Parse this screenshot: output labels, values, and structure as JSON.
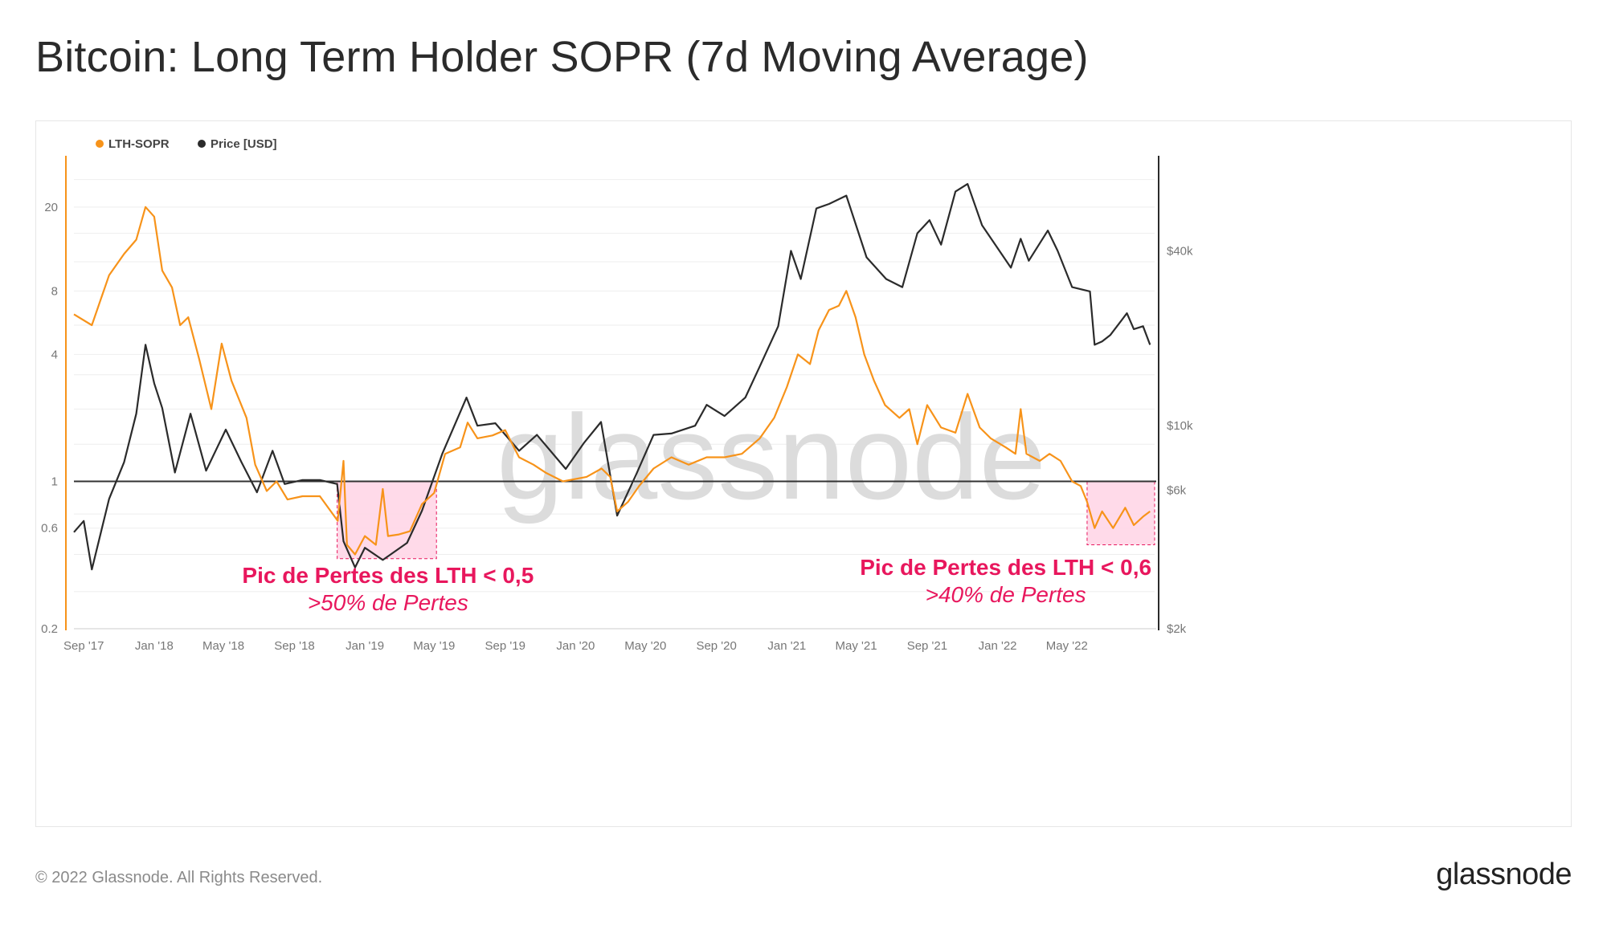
{
  "title": "Bitcoin: Long Term Holder SOPR (7d Moving Average)",
  "footer": {
    "copyright": "© 2022 Glassnode. All Rights Reserved.",
    "logo": "glassnode"
  },
  "colors": {
    "lth_sopr": "#f7931a",
    "price": "#2b2b2b",
    "highlight_fill": "#ffd6e7",
    "highlight_border": "#e8175d",
    "annotation": "#e8175d",
    "watermark": "#dcdcdc",
    "grid": "#eeeeee"
  },
  "chart_data": {
    "type": "line",
    "watermark": "glassnode",
    "legend": [
      "LTH-SOPR",
      "Price [USD]"
    ],
    "legend_position": "top-left",
    "grid": true,
    "x_range": [
      "2017-08-15",
      "2022-09-30"
    ],
    "x_ticks": [
      {
        "date": "2017-09-01",
        "label": "Sep '17"
      },
      {
        "date": "2018-01-01",
        "label": "Jan '18"
      },
      {
        "date": "2018-05-01",
        "label": "May '18"
      },
      {
        "date": "2018-09-01",
        "label": "Sep '18"
      },
      {
        "date": "2019-01-01",
        "label": "Jan '19"
      },
      {
        "date": "2019-05-01",
        "label": "May '19"
      },
      {
        "date": "2019-09-01",
        "label": "Sep '19"
      },
      {
        "date": "2020-01-01",
        "label": "Jan '20"
      },
      {
        "date": "2020-05-01",
        "label": "May '20"
      },
      {
        "date": "2020-09-01",
        "label": "Sep '20"
      },
      {
        "date": "2021-01-01",
        "label": "Jan '21"
      },
      {
        "date": "2021-05-01",
        "label": "May '21"
      },
      {
        "date": "2021-09-01",
        "label": "Sep '21"
      },
      {
        "date": "2022-01-01",
        "label": "Jan '22"
      },
      {
        "date": "2022-05-01",
        "label": "May '22"
      }
    ],
    "y_left": {
      "scale": "log",
      "range": [
        0.2,
        35
      ],
      "ticks": [
        {
          "value": 0.2,
          "label": "0.2"
        },
        {
          "value": 0.6,
          "label": "0.6"
        },
        {
          "value": 1,
          "label": "1"
        },
        {
          "value": 4,
          "label": "4"
        },
        {
          "value": 8,
          "label": "8"
        },
        {
          "value": 20,
          "label": "20"
        }
      ]
    },
    "y_right": {
      "scale": "log",
      "range": [
        2000,
        85000
      ],
      "ticks": [
        {
          "value": 2000,
          "label": "$2k"
        },
        {
          "value": 6000,
          "label": "$6k"
        },
        {
          "value": 10000,
          "label": "$10k"
        },
        {
          "value": 40000,
          "label": "$40k"
        }
      ]
    },
    "reference_line": {
      "value": 1,
      "axis": "left"
    },
    "series": [
      {
        "name": "LTH-SOPR",
        "axis": "left",
        "points": [
          [
            "2017-08-15",
            6.2
          ],
          [
            "2017-09-15",
            5.5
          ],
          [
            "2017-10-15",
            9.5
          ],
          [
            "2017-11-10",
            12
          ],
          [
            "2017-12-01",
            14
          ],
          [
            "2017-12-17",
            20
          ],
          [
            "2018-01-01",
            18
          ],
          [
            "2018-01-15",
            10
          ],
          [
            "2018-02-01",
            8.3
          ],
          [
            "2018-02-15",
            5.5
          ],
          [
            "2018-03-01",
            6
          ],
          [
            "2018-03-20",
            3.8
          ],
          [
            "2018-04-10",
            2.2
          ],
          [
            "2018-04-28",
            4.5
          ],
          [
            "2018-05-15",
            3
          ],
          [
            "2018-06-10",
            2.0
          ],
          [
            "2018-06-25",
            1.2
          ],
          [
            "2018-07-15",
            0.9
          ],
          [
            "2018-08-01",
            1.0
          ],
          [
            "2018-08-20",
            0.82
          ],
          [
            "2018-09-15",
            0.85
          ],
          [
            "2018-10-15",
            0.85
          ],
          [
            "2018-11-15",
            0.65
          ],
          [
            "2018-11-25",
            1.25
          ],
          [
            "2018-12-01",
            0.5
          ],
          [
            "2018-12-15",
            0.45
          ],
          [
            "2019-01-01",
            0.55
          ],
          [
            "2019-01-20",
            0.5
          ],
          [
            "2019-02-01",
            0.92
          ],
          [
            "2019-02-10",
            0.55
          ],
          [
            "2019-03-01",
            0.56
          ],
          [
            "2019-03-20",
            0.58
          ],
          [
            "2019-04-10",
            0.78
          ],
          [
            "2019-05-01",
            0.88
          ],
          [
            "2019-05-20",
            1.35
          ],
          [
            "2019-06-15",
            1.45
          ],
          [
            "2019-06-28",
            1.9
          ],
          [
            "2019-07-15",
            1.6
          ],
          [
            "2019-08-10",
            1.65
          ],
          [
            "2019-09-01",
            1.75
          ],
          [
            "2019-09-25",
            1.3
          ],
          [
            "2019-10-20",
            1.2
          ],
          [
            "2019-11-10",
            1.1
          ],
          [
            "2019-12-10",
            1.0
          ],
          [
            "2020-01-20",
            1.05
          ],
          [
            "2020-02-15",
            1.15
          ],
          [
            "2020-03-01",
            1.05
          ],
          [
            "2020-03-13",
            0.72
          ],
          [
            "2020-04-01",
            0.8
          ],
          [
            "2020-04-20",
            0.95
          ],
          [
            "2020-05-15",
            1.15
          ],
          [
            "2020-06-15",
            1.3
          ],
          [
            "2020-07-15",
            1.2
          ],
          [
            "2020-08-15",
            1.3
          ],
          [
            "2020-09-15",
            1.3
          ],
          [
            "2020-10-15",
            1.35
          ],
          [
            "2020-11-15",
            1.6
          ],
          [
            "2020-12-10",
            2.0
          ],
          [
            "2021-01-01",
            2.8
          ],
          [
            "2021-01-20",
            4.0
          ],
          [
            "2021-02-10",
            3.6
          ],
          [
            "2021-02-25",
            5.2
          ],
          [
            "2021-03-15",
            6.5
          ],
          [
            "2021-04-01",
            6.8
          ],
          [
            "2021-04-14",
            8.0
          ],
          [
            "2021-04-30",
            6.0
          ],
          [
            "2021-05-15",
            4.0
          ],
          [
            "2021-06-01",
            3.0
          ],
          [
            "2021-06-20",
            2.3
          ],
          [
            "2021-07-15",
            2.0
          ],
          [
            "2021-08-01",
            2.2
          ],
          [
            "2021-08-15",
            1.5
          ],
          [
            "2021-09-01",
            2.3
          ],
          [
            "2021-09-25",
            1.8
          ],
          [
            "2021-10-20",
            1.7
          ],
          [
            "2021-11-10",
            2.6
          ],
          [
            "2021-12-01",
            1.8
          ],
          [
            "2021-12-20",
            1.6
          ],
          [
            "2022-01-15",
            1.45
          ],
          [
            "2022-02-01",
            1.35
          ],
          [
            "2022-02-10",
            2.2
          ],
          [
            "2022-02-20",
            1.35
          ],
          [
            "2022-03-15",
            1.25
          ],
          [
            "2022-04-01",
            1.35
          ],
          [
            "2022-04-20",
            1.25
          ],
          [
            "2022-05-10",
            1.0
          ],
          [
            "2022-05-25",
            0.95
          ],
          [
            "2022-06-05",
            0.8
          ],
          [
            "2022-06-18",
            0.6
          ],
          [
            "2022-07-01",
            0.72
          ],
          [
            "2022-07-20",
            0.6
          ],
          [
            "2022-08-10",
            0.75
          ],
          [
            "2022-08-25",
            0.62
          ],
          [
            "2022-09-10",
            0.68
          ],
          [
            "2022-09-22",
            0.72
          ]
        ]
      },
      {
        "name": "Price [USD]",
        "axis": "right",
        "points": [
          [
            "2017-08-15",
            4300
          ],
          [
            "2017-09-01",
            4700
          ],
          [
            "2017-09-15",
            3200
          ],
          [
            "2017-10-15",
            5600
          ],
          [
            "2017-11-10",
            7500
          ],
          [
            "2017-12-01",
            11000
          ],
          [
            "2017-12-17",
            19000
          ],
          [
            "2018-01-01",
            14000
          ],
          [
            "2018-01-15",
            11500
          ],
          [
            "2018-02-06",
            6900
          ],
          [
            "2018-03-05",
            11000
          ],
          [
            "2018-04-01",
            7000
          ],
          [
            "2018-05-05",
            9700
          ],
          [
            "2018-06-01",
            7500
          ],
          [
            "2018-06-28",
            5900
          ],
          [
            "2018-07-25",
            8200
          ],
          [
            "2018-08-15",
            6300
          ],
          [
            "2018-09-15",
            6500
          ],
          [
            "2018-10-15",
            6500
          ],
          [
            "2018-11-14",
            6300
          ],
          [
            "2018-11-25",
            4000
          ],
          [
            "2018-12-15",
            3250
          ],
          [
            "2019-01-01",
            3800
          ],
          [
            "2019-02-01",
            3450
          ],
          [
            "2019-03-15",
            3950
          ],
          [
            "2019-04-10",
            5100
          ],
          [
            "2019-05-15",
            8000
          ],
          [
            "2019-06-26",
            12500
          ],
          [
            "2019-07-15",
            10000
          ],
          [
            "2019-08-15",
            10200
          ],
          [
            "2019-09-25",
            8200
          ],
          [
            "2019-10-26",
            9300
          ],
          [
            "2019-12-15",
            7100
          ],
          [
            "2020-01-15",
            8700
          ],
          [
            "2020-02-14",
            10300
          ],
          [
            "2020-03-13",
            4900
          ],
          [
            "2020-04-15",
            6800
          ],
          [
            "2020-05-15",
            9300
          ],
          [
            "2020-06-15",
            9400
          ],
          [
            "2020-07-26",
            10000
          ],
          [
            "2020-08-15",
            11800
          ],
          [
            "2020-09-15",
            10800
          ],
          [
            "2020-10-21",
            12500
          ],
          [
            "2020-11-15",
            16000
          ],
          [
            "2020-12-17",
            22000
          ],
          [
            "2021-01-08",
            40000
          ],
          [
            "2021-01-25",
            32000
          ],
          [
            "2021-02-21",
            56000
          ],
          [
            "2021-03-15",
            58000
          ],
          [
            "2021-04-14",
            62000
          ],
          [
            "2021-05-19",
            38000
          ],
          [
            "2021-06-22",
            32000
          ],
          [
            "2021-07-20",
            30000
          ],
          [
            "2021-08-15",
            46000
          ],
          [
            "2021-09-05",
            51000
          ],
          [
            "2021-09-25",
            42000
          ],
          [
            "2021-10-20",
            64000
          ],
          [
            "2021-11-10",
            68000
          ],
          [
            "2021-12-05",
            49000
          ],
          [
            "2022-01-24",
            35000
          ],
          [
            "2022-02-10",
            44000
          ],
          [
            "2022-02-24",
            37000
          ],
          [
            "2022-03-29",
            47000
          ],
          [
            "2022-04-15",
            40000
          ],
          [
            "2022-05-10",
            30000
          ],
          [
            "2022-06-10",
            29000
          ],
          [
            "2022-06-18",
            19000
          ],
          [
            "2022-07-01",
            19500
          ],
          [
            "2022-07-15",
            20500
          ],
          [
            "2022-08-13",
            24400
          ],
          [
            "2022-08-25",
            21500
          ],
          [
            "2022-09-10",
            22000
          ],
          [
            "2022-09-22",
            19000
          ]
        ]
      }
    ],
    "highlights": [
      {
        "x_start": "2018-11-14",
        "x_end": "2019-05-05",
        "y_low": 0.43,
        "y_high": 1
      },
      {
        "x_start": "2022-06-05",
        "x_end": "2022-09-30",
        "y_low": 0.5,
        "y_high": 1
      }
    ],
    "annotations": [
      {
        "text": "Pic de Pertes des LTH < 0,5",
        "subtext": ">50% de Pertes",
        "x": "2019-02-10",
        "y": 0.33
      },
      {
        "text": "Pic de Pertes des LTH < 0,6",
        "subtext": ">40% de Pertes",
        "x": "2022-01-15",
        "y": 0.36
      }
    ]
  }
}
